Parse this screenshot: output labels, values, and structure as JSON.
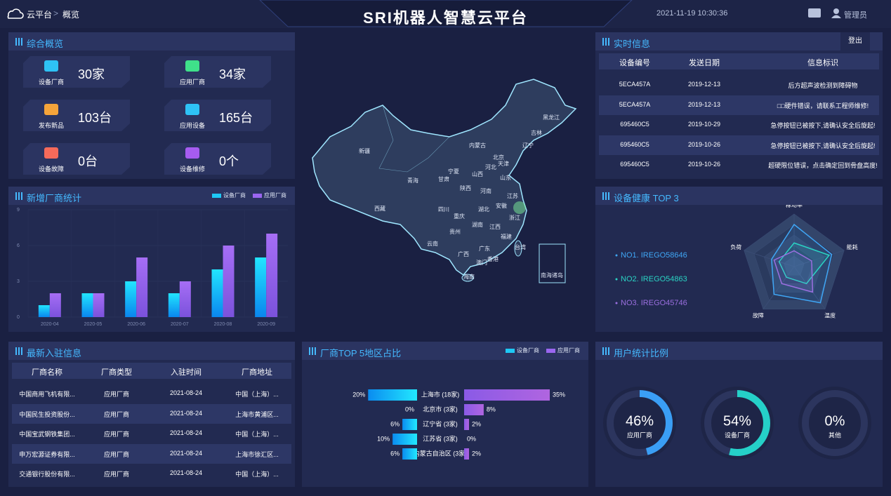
{
  "header": {
    "root": "云平台",
    "current": "概览",
    "title": "SRI机器人智慧云平台",
    "datetime": "2021-11-19 10:30:36",
    "user": "管理员"
  },
  "overview": {
    "title": "综合概览",
    "items": [
      {
        "label": "设备厂商",
        "value": "30家"
      },
      {
        "label": "应用厂商",
        "value": "34家"
      },
      {
        "label": "发布新品",
        "value": "103台"
      },
      {
        "label": "应用设备",
        "value": "165台"
      },
      {
        "label": "设备故障",
        "value": "0台"
      },
      {
        "label": "设备维修",
        "value": "0个"
      }
    ]
  },
  "realtime": {
    "title": "实时信息",
    "logout": "登出",
    "columns": [
      "设备编号",
      "发送日期",
      "信息标识"
    ],
    "rows": [
      [
        "5ECA457A",
        "2019-12-13",
        "后方超声波检测到障碍物"
      ],
      [
        "5ECA457A",
        "2019-12-13",
        "□□硬件错误，请联系工程师维修!"
      ],
      [
        "695460C5",
        "2019-10-29",
        "急停按钮已被按下,请确认安全后旋起!"
      ],
      [
        "695460C5",
        "2019-10-26",
        "急停按钮已被按下,请确认安全后旋起!"
      ],
      [
        "695460C5",
        "2019-10-26",
        "超硬限位错误，点击确定回到骨盘高度!"
      ]
    ]
  },
  "latest": {
    "title": "最新入驻信息",
    "columns": [
      "厂商名称",
      "厂商类型",
      "入驻时间",
      "厂商地址"
    ],
    "rows": [
      [
        "中国商用飞机有限...",
        "应用厂商",
        "2021-08-24",
        "中国（上海）..."
      ],
      [
        "中国民生投资股份...",
        "应用厂商",
        "2021-08-24",
        "上海市黄浦区..."
      ],
      [
        "中国宝武钢铁集团...",
        "应用厂商",
        "2021-08-24",
        "中国（上海）..."
      ],
      [
        "申万宏源证券有限...",
        "应用厂商",
        "2021-08-24",
        "上海市徐汇区..."
      ],
      [
        "交通银行股份有限...",
        "应用厂商",
        "2021-08-24",
        "中国（上海）..."
      ]
    ]
  },
  "map": {
    "labels": [
      "新疆",
      "西藏",
      "青海",
      "甘肃",
      "内蒙古",
      "黑龙江",
      "吉林",
      "辽宁",
      "河北",
      "北京",
      "天津",
      "山西",
      "山东",
      "宁夏",
      "陕西",
      "河南",
      "江苏",
      "安徽",
      "浙江",
      "湖北",
      "四川",
      "重庆",
      "贵州",
      "湖南",
      "江西",
      "福建",
      "云南",
      "广西",
      "广东",
      "澳门",
      "香港",
      "台湾",
      "海南",
      "南海诸岛"
    ]
  },
  "chart_data": [
    {
      "type": "bar",
      "title": "新增厂商统计",
      "categories": [
        "2020-04",
        "2020-05",
        "2020-06",
        "2020-07",
        "2020-08",
        "2020-09"
      ],
      "series": [
        {
          "name": "设备厂商",
          "color": "#1ec8f5",
          "values": [
            1,
            2,
            3,
            2,
            4,
            5
          ]
        },
        {
          "name": "应用厂商",
          "color": "#9a66f0",
          "values": [
            2,
            2,
            5,
            3,
            6,
            7
          ]
        }
      ],
      "ylim": [
        0,
        9
      ],
      "yticks": [
        0,
        3,
        6,
        9
      ],
      "grid": true
    },
    {
      "type": "radar",
      "title": "设备健康 TOP 3",
      "axes": [
        "稼动率",
        "能耗",
        "温度",
        "故障",
        "负荷"
      ],
      "ylim": [
        0,
        100
      ],
      "series": [
        {
          "name": "NO1. IREGO58646",
          "color": "#3fa6f5",
          "values": [
            80,
            75,
            85,
            65,
            45
          ]
        },
        {
          "name": "NO2. IREGO54863",
          "color": "#2ad4c4",
          "values": [
            45,
            70,
            40,
            25,
            30
          ]
        },
        {
          "name": "NO3. IREGO45746",
          "color": "#9b6fe0",
          "values": [
            30,
            35,
            60,
            40,
            40
          ]
        }
      ]
    },
    {
      "type": "butterfly",
      "title": "厂商TOP 5地区占比",
      "categories": [
        "上海市 (18家)",
        "北京市 (3家)",
        "辽宁省 (3家)",
        "江苏省 (3家)",
        "内蒙古自治区 (3家)"
      ],
      "xlim": [
        0,
        35
      ],
      "series": [
        {
          "name": "设备厂商",
          "color": "#1ec8f5",
          "values": [
            20,
            0,
            6,
            10,
            6
          ],
          "value_labels": [
            "20%",
            "0%",
            "6%",
            "10%",
            "6%"
          ]
        },
        {
          "name": "应用厂商",
          "color": "#9a66f0",
          "values": [
            35,
            8,
            2,
            0,
            2
          ],
          "value_labels": [
            "35%",
            "8%",
            "2%",
            "0%",
            "2%"
          ]
        }
      ]
    },
    {
      "type": "donut",
      "title": "用户统计比例",
      "categories": [
        "应用厂商",
        "设备厂商",
        "其他"
      ],
      "values": [
        46,
        54,
        0
      ],
      "value_labels": [
        "46%",
        "54%",
        "0%"
      ],
      "colors": [
        "#3a9ef5",
        "#25d0c8",
        "#3a9ef5"
      ],
      "ylim": [
        0,
        100
      ]
    }
  ]
}
